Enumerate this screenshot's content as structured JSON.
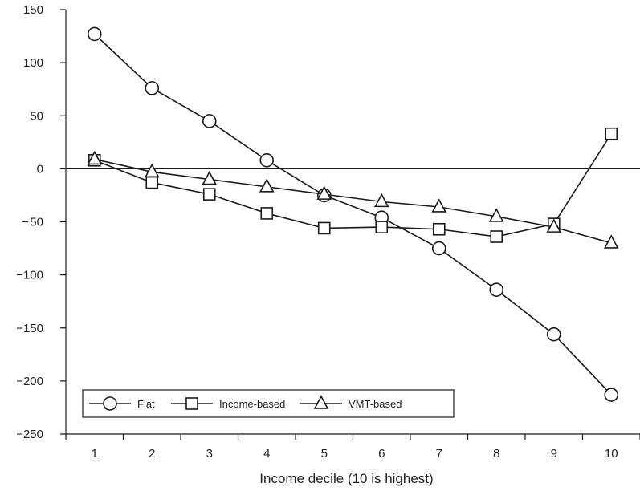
{
  "chart_data": {
    "type": "line",
    "xlabel": "Income decile (10 is highest)",
    "ylabel": "",
    "title": "",
    "categories": [
      "1",
      "2",
      "3",
      "4",
      "5",
      "6",
      "7",
      "8",
      "9",
      "10"
    ],
    "ylim": [
      -250,
      150
    ],
    "yticks": [
      "150",
      "100",
      "50",
      "0",
      "− 50",
      "−100",
      "−150",
      "−200",
      "−250"
    ],
    "ytick_values": [
      150,
      100,
      50,
      0,
      -50,
      -100,
      -150,
      -200,
      -250
    ],
    "legend_position": "bottom-left",
    "series": [
      {
        "name": "Flat",
        "marker": "circle",
        "values": [
          127,
          76,
          45,
          8,
          -25,
          -46,
          -75,
          -114,
          -156,
          -213
        ]
      },
      {
        "name": "Income-based",
        "marker": "square",
        "values": [
          8,
          -13,
          -24,
          -42,
          -56,
          -55,
          -57,
          -64,
          -52,
          33
        ]
      },
      {
        "name": "VMT-based",
        "marker": "triangle",
        "values": [
          9,
          -3,
          -10,
          -17,
          -24,
          -31,
          -36,
          -45,
          -55,
          -70
        ]
      }
    ],
    "colors": {
      "line": "#1a1a1a",
      "marker_fill": "#ffffff"
    }
  }
}
